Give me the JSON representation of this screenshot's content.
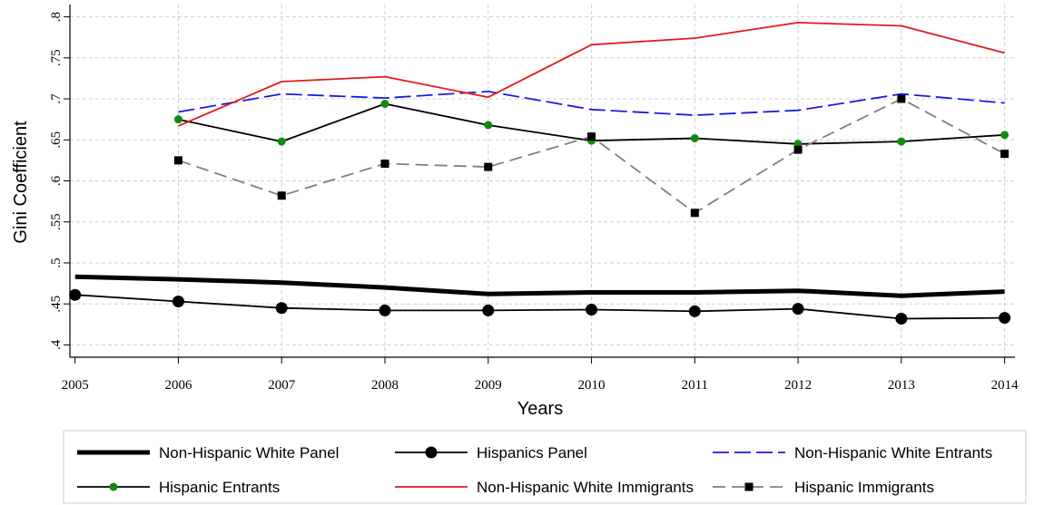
{
  "chart_data": {
    "type": "line",
    "title": "",
    "xlabel": "Years",
    "ylabel": "Gini Coefficient",
    "x": [
      2005,
      2006,
      2007,
      2008,
      2009,
      2010,
      2011,
      2012,
      2013,
      2014
    ],
    "x_ticks": [
      "2005",
      "2006",
      "2007",
      "2008",
      "2009",
      "2010",
      "2011",
      "2012",
      "2013",
      "2014"
    ],
    "y_ticks": [
      {
        "value": 0.4,
        "label": ".4"
      },
      {
        "value": 0.45,
        "label": ".45"
      },
      {
        "value": 0.5,
        "label": ".5"
      },
      {
        "value": 0.55,
        "label": ".55"
      },
      {
        "value": 0.6,
        "label": ".6"
      },
      {
        "value": 0.65,
        "label": ".65"
      },
      {
        "value": 0.7,
        "label": ".7"
      },
      {
        "value": 0.75,
        "label": ".75"
      },
      {
        "value": 0.8,
        "label": ".8"
      }
    ],
    "ylim": [
      0.385,
      0.815
    ],
    "xlim": [
      2004.95,
      2014.1
    ],
    "grid": true,
    "legend_position": "bottom",
    "series": [
      {
        "name": "Non-Hispanic White Panel",
        "color": "#000000",
        "style": "thick-solid",
        "marker": "none",
        "x": [
          2005,
          2006,
          2007,
          2008,
          2009,
          2010,
          2011,
          2012,
          2013,
          2014
        ],
        "values": [
          0.483,
          0.48,
          0.476,
          0.47,
          0.462,
          0.464,
          0.464,
          0.466,
          0.46,
          0.465
        ]
      },
      {
        "name": "Hispanics Panel",
        "color": "#000000",
        "style": "solid",
        "marker": "circle-large",
        "x": [
          2005,
          2006,
          2007,
          2008,
          2009,
          2010,
          2011,
          2012,
          2013,
          2014
        ],
        "values": [
          0.461,
          0.453,
          0.445,
          0.442,
          0.442,
          0.443,
          0.441,
          0.444,
          0.432,
          0.433
        ]
      },
      {
        "name": "Non-Hispanic White Entrants",
        "color": "#1a1ae6",
        "style": "long-dash",
        "marker": "none",
        "x": [
          2006,
          2007,
          2008,
          2009,
          2010,
          2011,
          2012,
          2013,
          2014
        ],
        "values": [
          0.684,
          0.706,
          0.701,
          0.709,
          0.687,
          0.68,
          0.686,
          0.706,
          0.695
        ]
      },
      {
        "name": "Hispanic Entrants",
        "color": "#000000",
        "style": "solid",
        "marker": "circle-green",
        "x": [
          2006,
          2007,
          2008,
          2009,
          2010,
          2011,
          2012,
          2013,
          2014
        ],
        "values": [
          0.675,
          0.648,
          0.694,
          0.668,
          0.649,
          0.652,
          0.645,
          0.648,
          0.656
        ]
      },
      {
        "name": "Non-Hispanic White Immigrants",
        "color": "#e31a1c",
        "style": "solid",
        "marker": "none",
        "x": [
          2006,
          2007,
          2008,
          2009,
          2010,
          2011,
          2012,
          2013,
          2014
        ],
        "values": [
          0.667,
          0.721,
          0.727,
          0.702,
          0.766,
          0.774,
          0.793,
          0.789,
          0.756
        ]
      },
      {
        "name": "Hispanic Immigrants",
        "color": "#808080",
        "style": "dash",
        "marker": "square",
        "x": [
          2006,
          2007,
          2008,
          2009,
          2010,
          2011,
          2012,
          2013,
          2014
        ],
        "values": [
          0.625,
          0.582,
          0.621,
          0.617,
          0.654,
          0.561,
          0.638,
          0.7,
          0.633
        ]
      }
    ]
  }
}
